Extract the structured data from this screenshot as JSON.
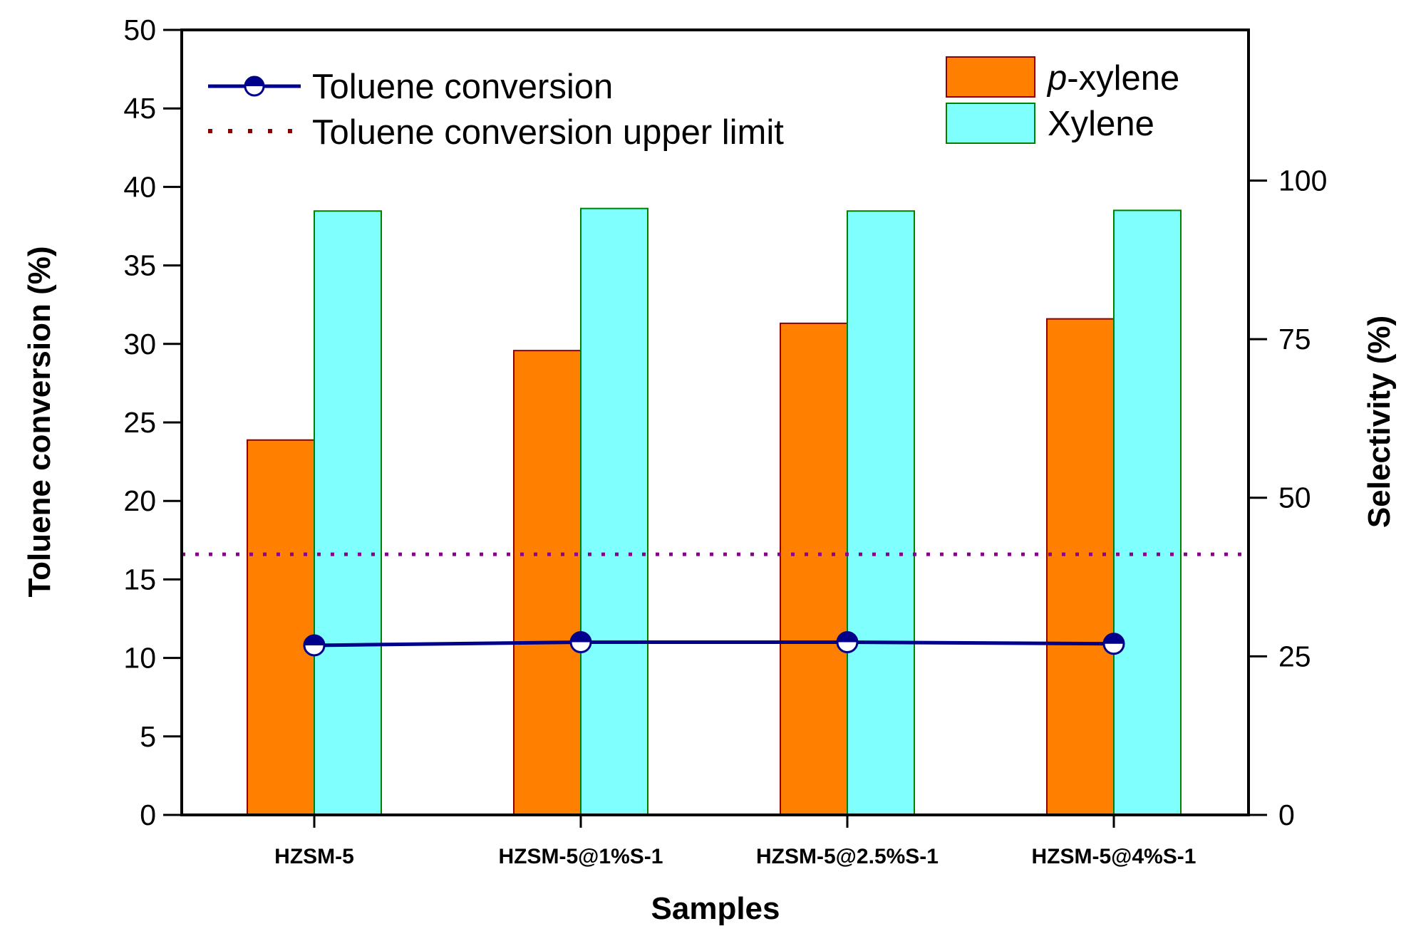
{
  "chart_data": {
    "type": "bar",
    "xlabel": "Samples",
    "ylabel": "Toluene conversion (%)",
    "y2label": "Selectivity (%)",
    "categories": [
      "HZSM-5",
      "HZSM-5@1%S-1",
      "HZSM-5@2.5%S-1",
      "HZSM-5@4%S-1"
    ],
    "ylim": [
      0,
      50
    ],
    "yticks": [
      0,
      5,
      10,
      15,
      20,
      25,
      30,
      35,
      40,
      45,
      50
    ],
    "y2lim": [
      0,
      123.75
    ],
    "y2ticks": [
      0,
      25,
      50,
      75,
      100
    ],
    "bars": [
      {
        "name": "p-xylene",
        "name_prefix": "p",
        "name_suffix": "-xylene",
        "axis": "right",
        "color": "#ff8000",
        "edge": "#8b0000",
        "values": [
          59.1,
          73.2,
          77.5,
          78.2
        ]
      },
      {
        "name": "Xylene",
        "axis": "right",
        "color": "#80ffff",
        "edge": "#008000",
        "values": [
          95.2,
          95.6,
          95.2,
          95.3
        ]
      }
    ],
    "line": {
      "name": "Toluene conversion",
      "axis": "left",
      "color": "#00008b",
      "values": [
        10.8,
        11.0,
        11.0,
        10.9
      ]
    },
    "reference_line": {
      "name": "Toluene conversion upper limit",
      "axis": "left",
      "color": "#8b008b",
      "value": 16.6
    }
  }
}
